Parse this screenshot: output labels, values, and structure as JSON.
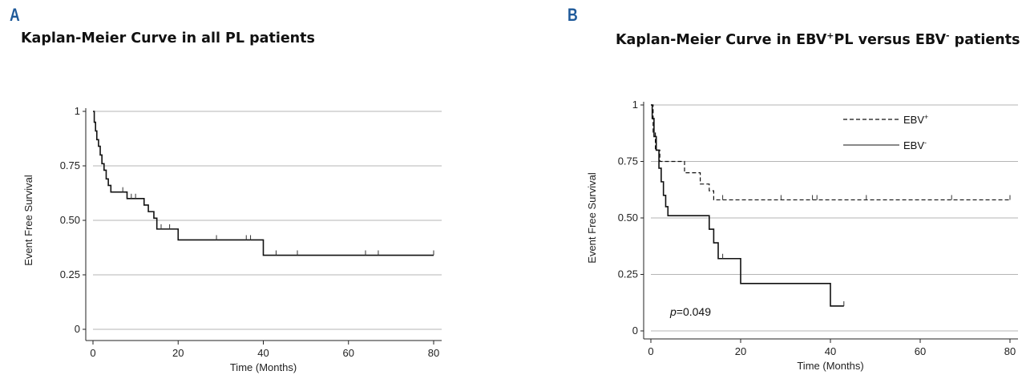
{
  "panel_a": {
    "label": "A",
    "title": "Kaplan-Meier Curve in all PL patients"
  },
  "panel_b": {
    "label": "B",
    "title_parts": [
      "Kaplan-Meier Curve in EBV",
      "+",
      "PL versus EBV",
      "-",
      " patients"
    ],
    "pvalue_label": "p",
    "pvalue_text": "=0.049"
  },
  "chart_data": [
    {
      "type": "line",
      "subtype": "kaplan-meier",
      "title": "Kaplan-Meier Curve in all PL patients",
      "xlabel": "Time (Months)",
      "ylabel": "Event Free Survival",
      "xlim": [
        0,
        80
      ],
      "ylim": [
        0,
        1
      ],
      "x_ticks": [
        0,
        20,
        40,
        60,
        80
      ],
      "x_tick_labels": [
        "0",
        "20",
        "40",
        "60",
        "80"
      ],
      "y_ticks": [
        0,
        0.25,
        0.5,
        0.75,
        1
      ],
      "y_tick_labels": [
        "0",
        "0.25",
        "0.50",
        "0.75",
        "1"
      ],
      "grid": true,
      "series": [
        {
          "name": "All PL patients",
          "style": "solid",
          "steps": [
            [
              0,
              1.0
            ],
            [
              0.3,
              0.95
            ],
            [
              0.6,
              0.91
            ],
            [
              0.9,
              0.87
            ],
            [
              1.3,
              0.84
            ],
            [
              1.7,
              0.8
            ],
            [
              2.1,
              0.76
            ],
            [
              2.6,
              0.73
            ],
            [
              3.1,
              0.69
            ],
            [
              3.6,
              0.66
            ],
            [
              4.2,
              0.63
            ],
            [
              8.0,
              0.6
            ],
            [
              12.0,
              0.57
            ],
            [
              13.0,
              0.54
            ],
            [
              14.3,
              0.51
            ],
            [
              15.0,
              0.46
            ],
            [
              20.0,
              0.41
            ],
            [
              40.0,
              0.34
            ],
            [
              80.0,
              0.34
            ]
          ],
          "censored": [
            [
              7,
              0.63
            ],
            [
              9,
              0.6
            ],
            [
              10,
              0.6
            ],
            [
              16,
              0.46
            ],
            [
              18,
              0.46
            ],
            [
              29,
              0.41
            ],
            [
              36,
              0.41
            ],
            [
              37,
              0.41
            ],
            [
              43,
              0.34
            ],
            [
              48,
              0.34
            ],
            [
              64,
              0.34
            ],
            [
              67,
              0.34
            ],
            [
              80,
              0.34
            ]
          ]
        }
      ]
    },
    {
      "type": "line",
      "subtype": "kaplan-meier",
      "title": "Kaplan-Meier Curve in EBV+PL versus EBV- patients",
      "xlabel": "Time (Months)",
      "ylabel": "Event Free Survival",
      "xlim": [
        0,
        80
      ],
      "ylim": [
        0,
        1
      ],
      "x_ticks": [
        0,
        20,
        40,
        60,
        80
      ],
      "x_tick_labels": [
        "0",
        "20",
        "40",
        "60",
        "80"
      ],
      "y_ticks": [
        0,
        0.25,
        0.5,
        0.75,
        1
      ],
      "y_tick_labels": [
        "0",
        "0.25",
        "0.50",
        "0.75",
        "1"
      ],
      "grid": true,
      "legend_position": "top-right",
      "annotation": "p=0.049",
      "series": [
        {
          "name": "EBV+",
          "legend_main": "EBV",
          "legend_sup": "+",
          "style": "dashed",
          "steps": [
            [
              0,
              1.0
            ],
            [
              0.5,
              0.88
            ],
            [
              1.0,
              0.8
            ],
            [
              2.0,
              0.75
            ],
            [
              7.5,
              0.7
            ],
            [
              11.0,
              0.65
            ],
            [
              13.0,
              0.62
            ],
            [
              14.0,
              0.58
            ],
            [
              80.0,
              0.58
            ]
          ],
          "censored": [
            [
              16,
              0.58
            ],
            [
              29,
              0.58
            ],
            [
              36,
              0.58
            ],
            [
              37,
              0.58
            ],
            [
              48,
              0.58
            ],
            [
              67,
              0.58
            ],
            [
              80,
              0.58
            ]
          ]
        },
        {
          "name": "EBV-",
          "legend_main": "EBV",
          "legend_sup": "-",
          "style": "solid",
          "steps": [
            [
              0,
              1.0
            ],
            [
              0.3,
              0.94
            ],
            [
              0.7,
              0.86
            ],
            [
              1.2,
              0.8
            ],
            [
              1.8,
              0.72
            ],
            [
              2.3,
              0.66
            ],
            [
              2.8,
              0.6
            ],
            [
              3.3,
              0.55
            ],
            [
              3.8,
              0.51
            ],
            [
              13.0,
              0.45
            ],
            [
              14.0,
              0.39
            ],
            [
              15.0,
              0.32
            ],
            [
              20.0,
              0.21
            ],
            [
              40.0,
              0.11
            ],
            [
              43.0,
              0.11
            ]
          ],
          "censored": [
            [
              16,
              0.32
            ],
            [
              43,
              0.11
            ]
          ]
        }
      ]
    }
  ]
}
